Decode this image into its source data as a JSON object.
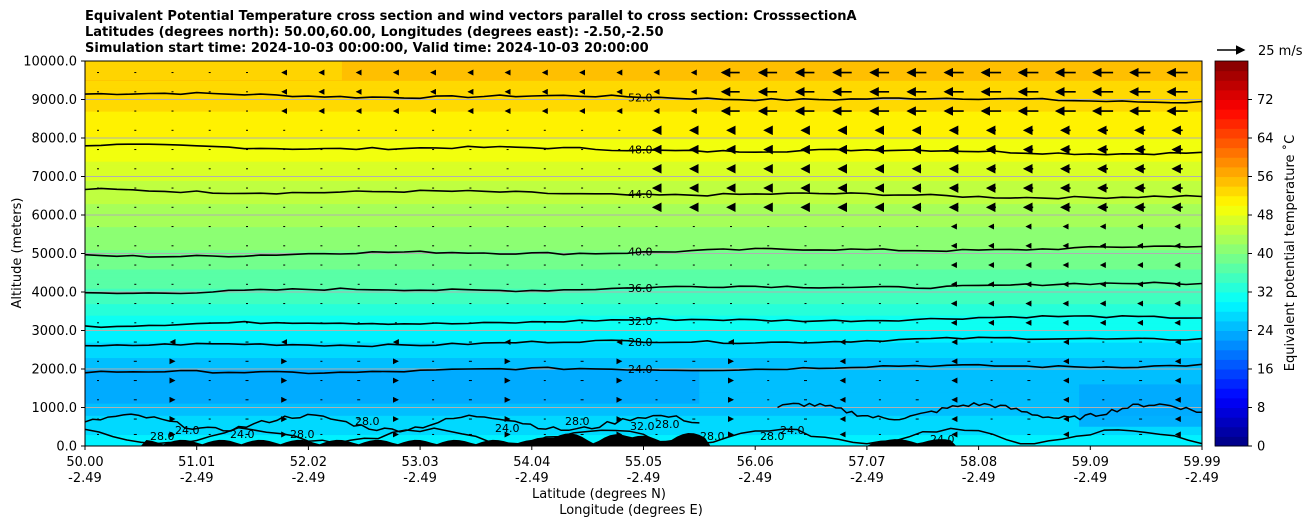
{
  "chart_data": {
    "type": "heatmap",
    "title_lines": [
      "Equivalent Potential Temperature cross section and wind vectors parallel to cross section: CrosssectionA",
      "Latitudes (degrees north): 50.00,60.00, Longitudes (degrees east): -2.50,-2.50",
      "Simulation start time: 2024-10-03 00:00:00, Valid time: 2024-10-03 20:00:00"
    ],
    "xlabel_primary": "Latitude (degrees N)",
    "xlabel_secondary": "Longitude (degrees E)",
    "ylabel": "Altitude (meters)",
    "x_ticks": [
      {
        "lat": "50.00",
        "lon": "-2.49"
      },
      {
        "lat": "51.01",
        "lon": "-2.49"
      },
      {
        "lat": "52.02",
        "lon": "-2.49"
      },
      {
        "lat": "53.03",
        "lon": "-2.49"
      },
      {
        "lat": "54.04",
        "lon": "-2.49"
      },
      {
        "lat": "55.05",
        "lon": "-2.49"
      },
      {
        "lat": "56.06",
        "lon": "-2.49"
      },
      {
        "lat": "57.07",
        "lon": "-2.49"
      },
      {
        "lat": "58.08",
        "lon": "-2.49"
      },
      {
        "lat": "59.09",
        "lon": "-2.49"
      },
      {
        "lat": "59.99",
        "lon": "-2.49"
      }
    ],
    "y_ticks": [
      "0.0",
      "1000.0",
      "2000.0",
      "3000.0",
      "4000.0",
      "5000.0",
      "6000.0",
      "7000.0",
      "8000.0",
      "9000.0",
      "10000.0"
    ],
    "ylim": [
      0,
      10000
    ],
    "xlim": [
      50.0,
      59.99
    ],
    "grid": "horizontal",
    "colorbar": {
      "label": "Equivalent potential temperature ˚C",
      "ticks": [
        "0",
        "8",
        "16",
        "24",
        "32",
        "40",
        "48",
        "56",
        "64",
        "72"
      ],
      "range": [
        0,
        80
      ],
      "colormap": "jet"
    },
    "field_profile": {
      "altitudes": [
        0,
        1000,
        2000,
        3000,
        4000,
        5000,
        6000,
        7000,
        8000,
        9000,
        10000
      ],
      "values": [
        29,
        25,
        24,
        30,
        35.5,
        39.5,
        43,
        46.5,
        50,
        53,
        55
      ]
    },
    "contours": [
      {
        "label": "52.0",
        "altitude": 9050
      },
      {
        "label": "48.0",
        "altitude": 7700
      },
      {
        "label": "44.0",
        "altitude": 6550
      },
      {
        "label": "40.0",
        "altitude": 5050
      },
      {
        "label": "36.0",
        "altitude": 4100
      },
      {
        "label": "32.0",
        "altitude": 3250
      },
      {
        "label": "28.0",
        "altitude": 2700
      },
      {
        "label": "24.0",
        "altitude": 2000
      }
    ],
    "lower_contour_labels": [
      "28.0",
      "24.0",
      "24.0",
      "28.0",
      "28.0",
      "24.0",
      "28.0",
      "32.0",
      "28.0",
      "28.0",
      "28.0",
      "24.0",
      "24.0"
    ],
    "wind_key": {
      "label": "25 m/s",
      "speed": 25
    },
    "wind_vectors": {
      "levels": [
        9700,
        9200,
        8700,
        8200,
        7700,
        7200,
        6700,
        6200,
        5700,
        5200,
        4700,
        4200,
        3700,
        3200,
        2700,
        2200,
        1700,
        1200,
        700,
        300
      ],
      "upper_jet_speed_ms": 18
    }
  }
}
